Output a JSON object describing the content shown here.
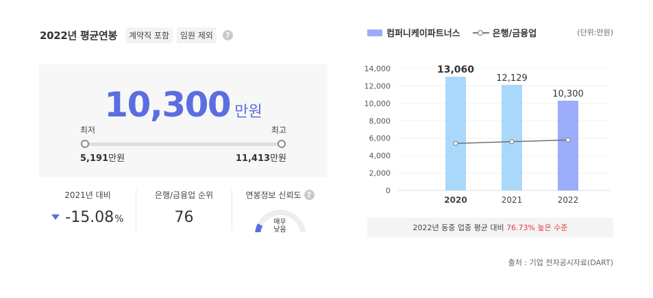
{
  "header": {
    "title": "2022년 평균연봉",
    "tag1": "계약직 포함",
    "tag2": "임원 제외",
    "help": "?"
  },
  "salary": {
    "value": "10,300",
    "unit": "만원",
    "min_label": "최저",
    "max_label": "최고",
    "min_value": "5,191",
    "max_value": "11,413",
    "value_unit": "만원"
  },
  "stats": {
    "yoy_label": "2021년 대비",
    "yoy_value": "-15.08",
    "yoy_unit": "%",
    "rank_label": "은행/금융업 순위",
    "rank_value": "76",
    "reliability_label": "연봉정보 신뢰도",
    "reliability_line1": "매우",
    "reliability_line2": "낮음",
    "reliability_fraction": 0.15
  },
  "legend": {
    "bar": "컴퍼니케이파트너스",
    "line": "은행/금융업",
    "unit": "(단위:만원)"
  },
  "chart_data": {
    "type": "bar",
    "categories": [
      "2020",
      "2021",
      "2022"
    ],
    "series": [
      {
        "name": "컴퍼니케이파트너스",
        "type": "bar",
        "values": [
          13060,
          12129,
          10300
        ],
        "labels": [
          "13,060",
          "12,129",
          "10,300"
        ]
      },
      {
        "name": "은행/금융업",
        "type": "line",
        "values": [
          5400,
          5600,
          5800
        ]
      }
    ],
    "yticks": [
      "14,000",
      "12,000",
      "10,000",
      "8,000",
      "6,000",
      "4,000",
      "2,000",
      "0"
    ],
    "ytick_values": [
      14000,
      12000,
      10000,
      8000,
      6000,
      4000,
      2000,
      0
    ],
    "ylim": [
      0,
      14000
    ],
    "colors": {
      "bar": "#a9d8fb",
      "bar_highlight": "#9badfa",
      "line": "#6f6f6f"
    }
  },
  "compare": {
    "prefix": "2022년 동종 업종 평균 대비",
    "highlight": "76.73% 높은 수준"
  },
  "source": "출처 : 기업 전자공시자료(DART)",
  "colors": {
    "accent": "#5b6ee0",
    "danger": "#e03e3e"
  }
}
